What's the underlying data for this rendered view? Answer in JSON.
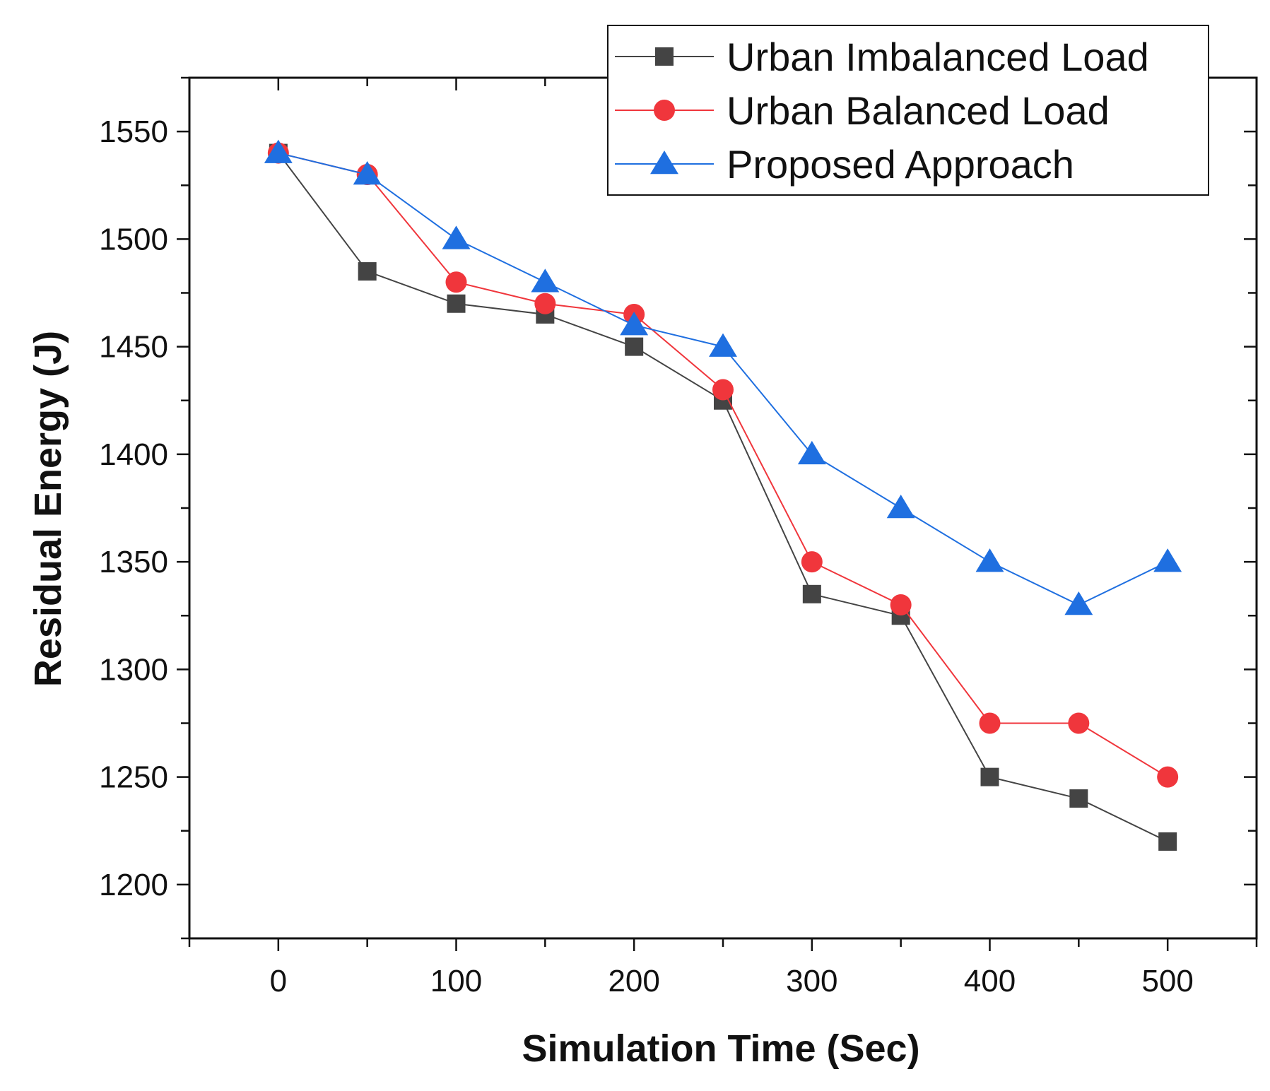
{
  "chart_data": {
    "type": "line",
    "title": "",
    "xlabel": "Simulation Time (Sec)",
    "ylabel": "Residual Energy (J)",
    "xlim": [
      -50,
      550
    ],
    "ylim": [
      1175,
      1575
    ],
    "x_ticks": [
      0,
      100,
      200,
      300,
      400,
      500
    ],
    "y_ticks": [
      1200,
      1250,
      1300,
      1350,
      1400,
      1450,
      1500,
      1550
    ],
    "grid": false,
    "legend_position": "top-right",
    "x": [
      0,
      50,
      100,
      150,
      200,
      250,
      300,
      350,
      400,
      450,
      500
    ],
    "series": [
      {
        "name": "Urban Imbalanced Load",
        "color": "#444444",
        "marker": "square",
        "values": [
          1540,
          1485,
          1470,
          1465,
          1450,
          1425,
          1335,
          1325,
          1250,
          1240,
          1220
        ]
      },
      {
        "name": "Urban Balanced Load",
        "color": "#f0363c",
        "marker": "circle",
        "values": [
          1540,
          1530,
          1480,
          1470,
          1465,
          1430,
          1350,
          1330,
          1275,
          1275,
          1250
        ]
      },
      {
        "name": "Proposed Approach",
        "color": "#1f6fe0",
        "marker": "triangle",
        "values": [
          1540,
          1530,
          1500,
          1480,
          1460,
          1450,
          1400,
          1375,
          1350,
          1330,
          1350
        ]
      }
    ]
  }
}
